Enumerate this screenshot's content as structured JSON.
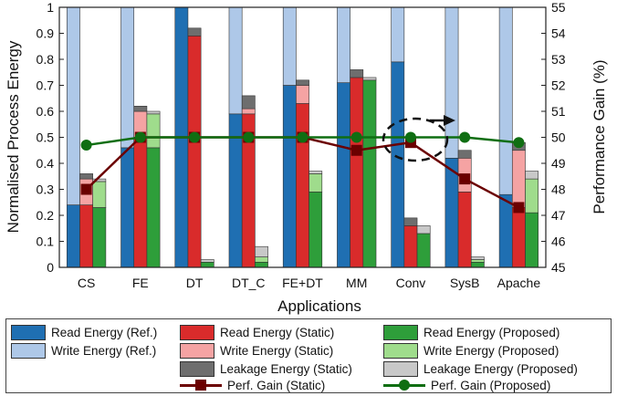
{
  "colors": {
    "read_ref": "#1f6fb2",
    "write_ref": "#aec8e8",
    "read_static": "#d92b2b",
    "write_static": "#f5a3a3",
    "leak_static": "#6e6e6e",
    "read_prop": "#2e9e3a",
    "write_prop": "#9fdc8c",
    "leak_prop": "#c8c8c8",
    "perf_static": "#6b0000",
    "perf_prop": "#0f6e12"
  },
  "chart_data": {
    "type": "bar",
    "xlabel": "Applications",
    "ylabel": "Normalised Process Energy",
    "y2label": "Performance Gain (%)",
    "ylim": [
      0,
      1
    ],
    "yticks": [
      "0",
      "0.1",
      "0.2",
      "0.3",
      "0.4",
      "0.5",
      "0.6",
      "0.7",
      "0.8",
      "0.9",
      "1"
    ],
    "y2lim": [
      45,
      55
    ],
    "y2ticks": [
      "45",
      "46",
      "47",
      "48",
      "49",
      "50",
      "51",
      "52",
      "53",
      "54",
      "55"
    ],
    "categories": [
      "CS",
      "FE",
      "DT",
      "DT_C",
      "FE+DT",
      "MM",
      "Conv",
      "SysB",
      "Apache"
    ],
    "reference": {
      "read": [
        0.24,
        0.46,
        1.0,
        0.59,
        0.7,
        0.71,
        0.79,
        0.42,
        0.28
      ],
      "write": [
        0.76,
        0.54,
        0.0,
        0.41,
        0.3,
        0.29,
        0.21,
        0.58,
        0.72
      ]
    },
    "static": {
      "read": [
        0.24,
        0.5,
        0.89,
        0.59,
        0.63,
        0.73,
        0.16,
        0.29,
        0.23
      ],
      "write": [
        0.1,
        0.1,
        0.0,
        0.02,
        0.07,
        0.0,
        0.0,
        0.13,
        0.22
      ],
      "leakage": [
        0.02,
        0.02,
        0.03,
        0.05,
        0.02,
        0.03,
        0.03,
        0.03,
        0.03
      ]
    },
    "proposed": {
      "read": [
        0.23,
        0.46,
        0.02,
        0.02,
        0.29,
        0.72,
        0.13,
        0.02,
        0.21
      ],
      "write": [
        0.1,
        0.13,
        0.0,
        0.02,
        0.07,
        0.0,
        0.0,
        0.01,
        0.13
      ],
      "leakage": [
        0.01,
        0.01,
        0.01,
        0.04,
        0.01,
        0.01,
        0.03,
        0.01,
        0.03
      ]
    },
    "perf_gain_static": [
      48.0,
      50.0,
      50.0,
      50.0,
      50.0,
      49.5,
      49.8,
      48.4,
      47.3
    ],
    "perf_gain_proposed": [
      49.7,
      50.0,
      50.0,
      50.0,
      50.0,
      50.0,
      50.0,
      50.0,
      49.8
    ],
    "grid": false,
    "legend_position": "bottom"
  },
  "legend": {
    "read_ref": "Read Energy (Ref.)",
    "read_static": "Read Energy (Static)",
    "read_prop": "Read Energy (Proposed)",
    "write_ref": "Write Energy (Ref.)",
    "write_static": "Write Energy (Static)",
    "write_prop": "Write Energy (Proposed)",
    "leak_static": "Leakage Energy (Static)",
    "leak_prop": "Leakage Energy (Proposed)",
    "perf_static": "Perf. Gain (Static)",
    "perf_prop": "Perf. Gain (Proposed)"
  }
}
